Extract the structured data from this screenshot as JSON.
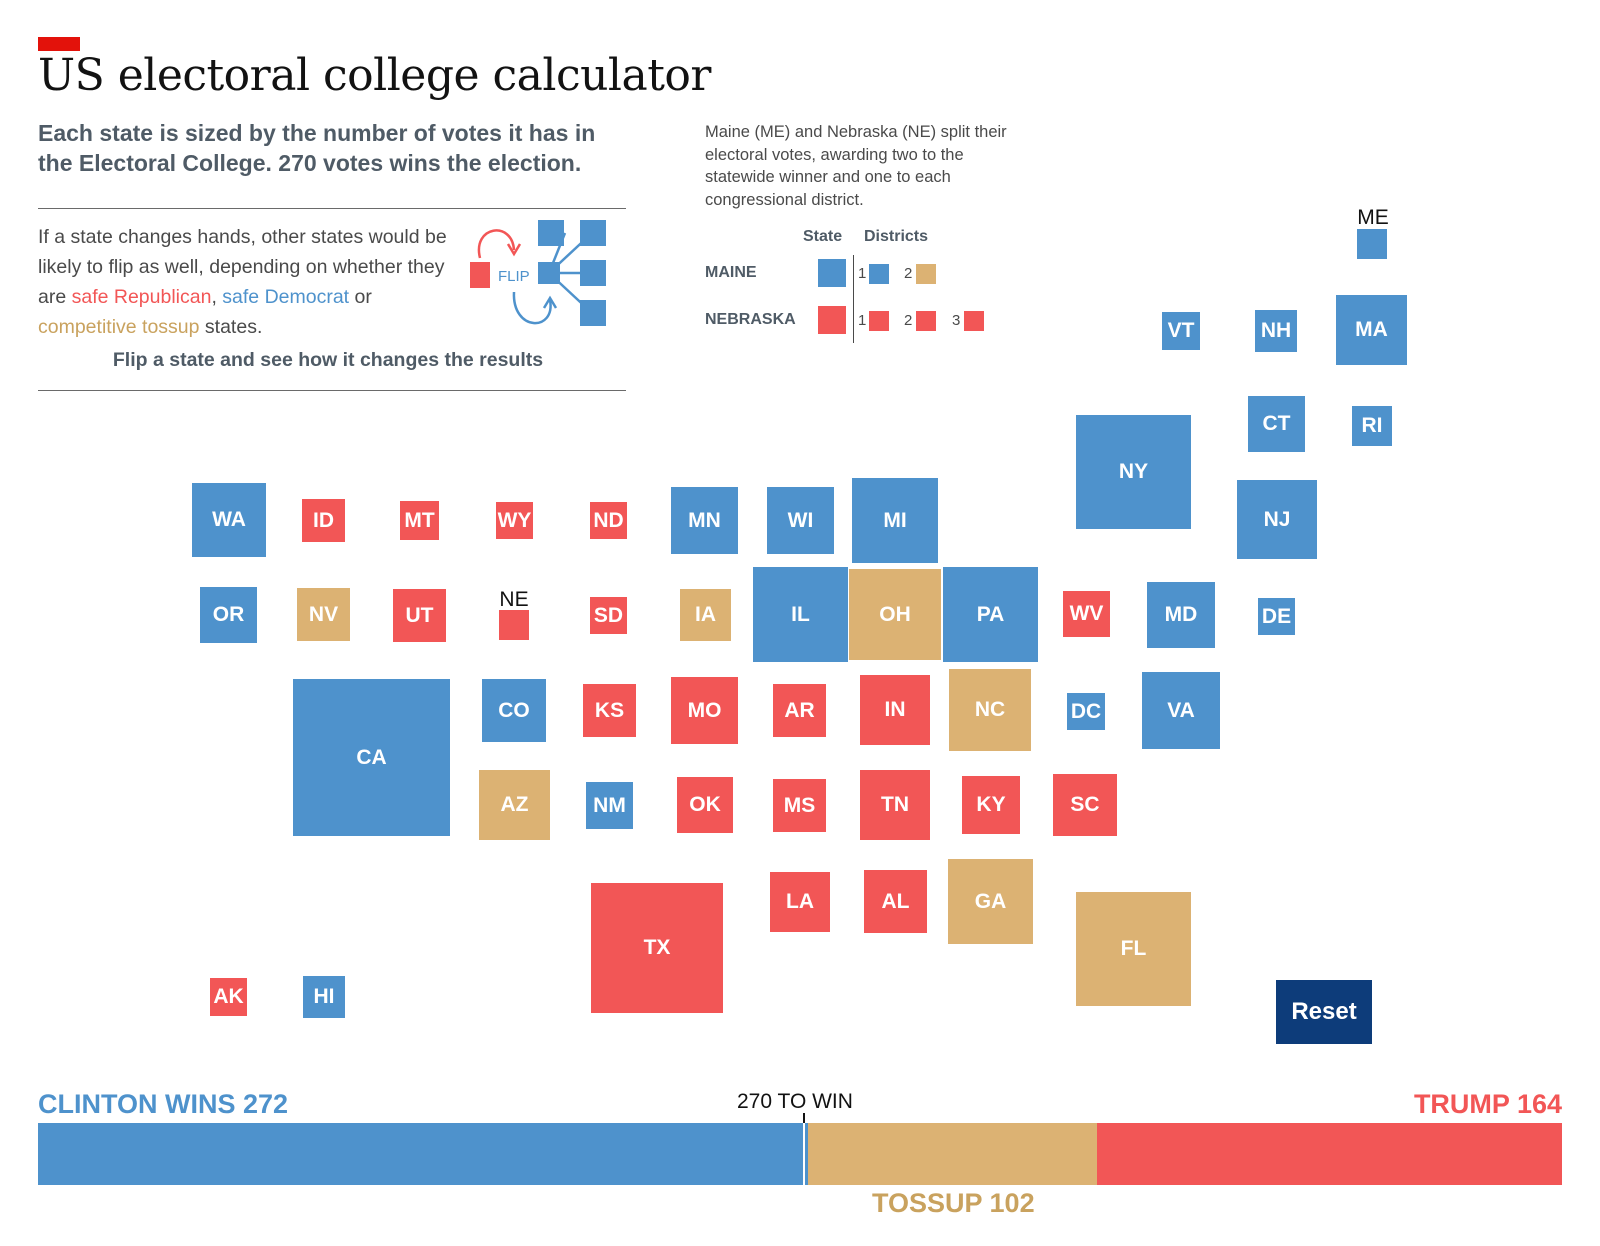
{
  "title": "US electoral college calculator",
  "subtitle": "Each state is sized by the number of votes it has in the Electoral College. 270 votes wins the election.",
  "flip_explainer": {
    "text_1": "If a state changes hands, other states would be likely to flip as well, depending on whether they are ",
    "safe_republican": "safe Republican",
    "sep_1": ", ",
    "safe_democrat": "safe Democrat",
    "sep_2": " or ",
    "competitive_tossup": "competitive tossup",
    "text_2": " states.",
    "cta": "Flip a state and see how it changes the results",
    "diagram_label": "FLIP"
  },
  "split_note": "Maine (ME) and Nebraska (NE) split their electoral votes, awarding two to the statewide winner and one to each congressional district.",
  "legend": {
    "state_header": "State",
    "districts_header": "Districts",
    "maine_label": "MAINE",
    "nebraska_label": "NEBRASKA",
    "maine_districts": [
      "1",
      "2"
    ],
    "nebraska_districts": [
      "1",
      "2",
      "3"
    ]
  },
  "colors": {
    "democrat": "#4e92cc",
    "republican": "#f25656",
    "tossup": "#dcb273",
    "reset": "#0d3c7a",
    "economist_red": "#e3120b"
  },
  "states": [
    {
      "abbr": "ME",
      "lean": "dem"
    },
    {
      "abbr": "VT",
      "lean": "dem"
    },
    {
      "abbr": "NH",
      "lean": "dem"
    },
    {
      "abbr": "MA",
      "lean": "dem"
    },
    {
      "abbr": "CT",
      "lean": "dem"
    },
    {
      "abbr": "RI",
      "lean": "dem"
    },
    {
      "abbr": "NY",
      "lean": "dem"
    },
    {
      "abbr": "NJ",
      "lean": "dem"
    },
    {
      "abbr": "WA",
      "lean": "dem"
    },
    {
      "abbr": "ID",
      "lean": "rep"
    },
    {
      "abbr": "MT",
      "lean": "rep"
    },
    {
      "abbr": "WY",
      "lean": "rep"
    },
    {
      "abbr": "ND",
      "lean": "rep"
    },
    {
      "abbr": "MN",
      "lean": "dem"
    },
    {
      "abbr": "WI",
      "lean": "dem"
    },
    {
      "abbr": "MI",
      "lean": "dem"
    },
    {
      "abbr": "OR",
      "lean": "dem"
    },
    {
      "abbr": "NV",
      "lean": "tossup"
    },
    {
      "abbr": "UT",
      "lean": "rep"
    },
    {
      "abbr": "NE",
      "lean": "rep"
    },
    {
      "abbr": "SD",
      "lean": "rep"
    },
    {
      "abbr": "IA",
      "lean": "tossup"
    },
    {
      "abbr": "IL",
      "lean": "dem"
    },
    {
      "abbr": "OH",
      "lean": "tossup"
    },
    {
      "abbr": "PA",
      "lean": "dem"
    },
    {
      "abbr": "WV",
      "lean": "rep"
    },
    {
      "abbr": "MD",
      "lean": "dem"
    },
    {
      "abbr": "DE",
      "lean": "dem"
    },
    {
      "abbr": "CA",
      "lean": "dem"
    },
    {
      "abbr": "CO",
      "lean": "dem"
    },
    {
      "abbr": "KS",
      "lean": "rep"
    },
    {
      "abbr": "MO",
      "lean": "rep"
    },
    {
      "abbr": "AR",
      "lean": "rep"
    },
    {
      "abbr": "IN",
      "lean": "rep"
    },
    {
      "abbr": "NC",
      "lean": "tossup"
    },
    {
      "abbr": "DC",
      "lean": "dem"
    },
    {
      "abbr": "VA",
      "lean": "dem"
    },
    {
      "abbr": "AZ",
      "lean": "tossup"
    },
    {
      "abbr": "NM",
      "lean": "dem"
    },
    {
      "abbr": "OK",
      "lean": "rep"
    },
    {
      "abbr": "MS",
      "lean": "rep"
    },
    {
      "abbr": "TN",
      "lean": "rep"
    },
    {
      "abbr": "KY",
      "lean": "rep"
    },
    {
      "abbr": "SC",
      "lean": "rep"
    },
    {
      "abbr": "TX",
      "lean": "rep"
    },
    {
      "abbr": "LA",
      "lean": "rep"
    },
    {
      "abbr": "AL",
      "lean": "rep"
    },
    {
      "abbr": "GA",
      "lean": "tossup"
    },
    {
      "abbr": "FL",
      "lean": "tossup"
    },
    {
      "abbr": "AK",
      "lean": "rep"
    },
    {
      "abbr": "HI",
      "lean": "dem"
    }
  ],
  "reset_label": "Reset",
  "results": {
    "clinton_label": "CLINTON WINS 272",
    "trump_label": "TRUMP 164",
    "tossup_label": "TOSSUP 102",
    "to_win_label": "270 TO WIN",
    "clinton_votes": 272,
    "tossup_votes": 102,
    "trump_votes": 164,
    "total_votes": 538,
    "win_threshold": 270
  }
}
